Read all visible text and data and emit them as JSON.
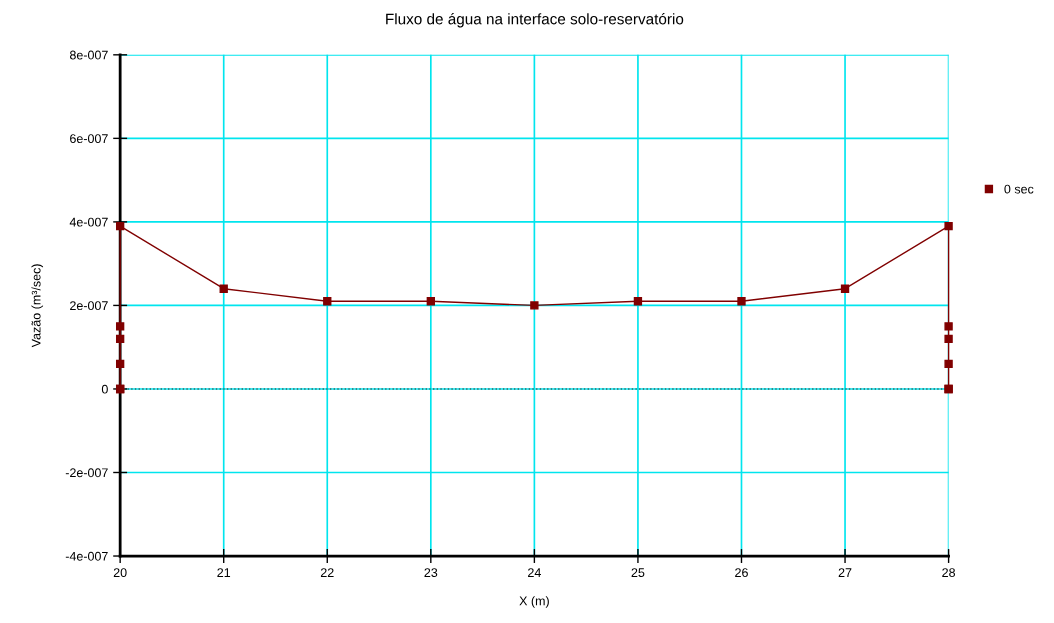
{
  "chart_data": {
    "type": "line",
    "title": "Fluxo de água na interface solo-reservatório",
    "xlabel": "X (m)",
    "ylabel": "Vazão (m³/sec)",
    "series": [
      {
        "name": "0 sec",
        "color": "#800000",
        "x": [
          20,
          20,
          20,
          20,
          20,
          20,
          21,
          22,
          23,
          24,
          25,
          26,
          27,
          28,
          28,
          28,
          28,
          28,
          28
        ],
        "values": [
          0.0,
          0.0,
          6e-08,
          1.2e-07,
          1.5e-07,
          3.9e-07,
          2.4e-07,
          2.1e-07,
          2.1e-07,
          2e-07,
          2.1e-07,
          2.1e-07,
          2.4e-07,
          3.9e-07,
          1.5e-07,
          1.2e-07,
          6e-08,
          0.0,
          0.0
        ]
      }
    ],
    "xlim": [
      20,
      28
    ],
    "xticks": [
      20,
      21,
      22,
      23,
      24,
      25,
      26,
      27,
      28
    ],
    "ylim": [
      -4e-07,
      8e-07
    ],
    "yticks": [
      {
        "value": -4e-07,
        "label": "-4e-007"
      },
      {
        "value": -2e-07,
        "label": "-2e-007"
      },
      0,
      {
        "value": 2e-07,
        "label": "2e-007"
      },
      {
        "value": 4e-07,
        "label": "4e-007"
      },
      {
        "value": 6e-07,
        "label": "6e-007"
      },
      {
        "value": 8e-07,
        "label": "8e-007"
      }
    ],
    "ref_lines": [
      {
        "axis": "y",
        "value": 0,
        "color": "#336666",
        "line_style": "dotted"
      }
    ],
    "grid": true,
    "legend": "right",
    "marker": "square",
    "line_style": "solid"
  }
}
